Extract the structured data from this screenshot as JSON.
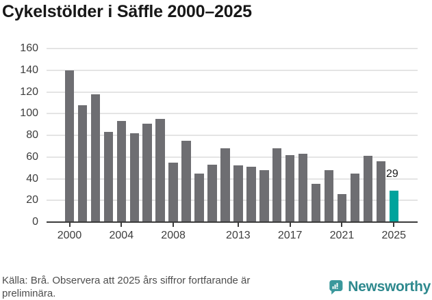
{
  "title": "Cykelstölder i Säffle 2000–2025",
  "chart_data": {
    "type": "bar",
    "title": "Cykelstölder i Säffle 2000–2025",
    "categories": [
      2000,
      2001,
      2002,
      2003,
      2004,
      2005,
      2006,
      2007,
      2008,
      2009,
      2010,
      2011,
      2012,
      2013,
      2014,
      2015,
      2016,
      2017,
      2018,
      2019,
      2020,
      2021,
      2022,
      2023,
      2024,
      2025
    ],
    "values": [
      140,
      108,
      118,
      83,
      93,
      82,
      91,
      95,
      55,
      75,
      45,
      53,
      68,
      52,
      51,
      48,
      68,
      62,
      63,
      35,
      48,
      26,
      45,
      61,
      56,
      29
    ],
    "xlabel": "",
    "ylabel": "",
    "ylim": [
      0,
      160
    ],
    "yticks": [
      0,
      20,
      40,
      60,
      80,
      100,
      120,
      140,
      160
    ],
    "xtick_labels": [
      "2000",
      "2004",
      "2008",
      "2013",
      "2017",
      "2021",
      "2025"
    ],
    "xtick_indices": [
      0,
      4,
      8,
      13,
      17,
      21,
      25
    ],
    "grid": true,
    "legend": null,
    "highlight_index": 25,
    "annotation": {
      "index": 25,
      "label": "29"
    },
    "colors": {
      "bar": "#6e6e72",
      "highlight": "#00a39c",
      "gridline": "#e4e4e4",
      "axis": "#3a3a3a",
      "tick_label": "#3d3d3d"
    }
  },
  "footer": {
    "lines": [
      "Källa: Brå. Observera att 2025 års siffror fortfarande är",
      "preliminära."
    ]
  },
  "logo": {
    "wordmark": "Newsworthy",
    "icon": "newsworthy-speech-bubble-chart-icon",
    "brand_color": "#2e898e",
    "icon_color": "#3b989c"
  }
}
